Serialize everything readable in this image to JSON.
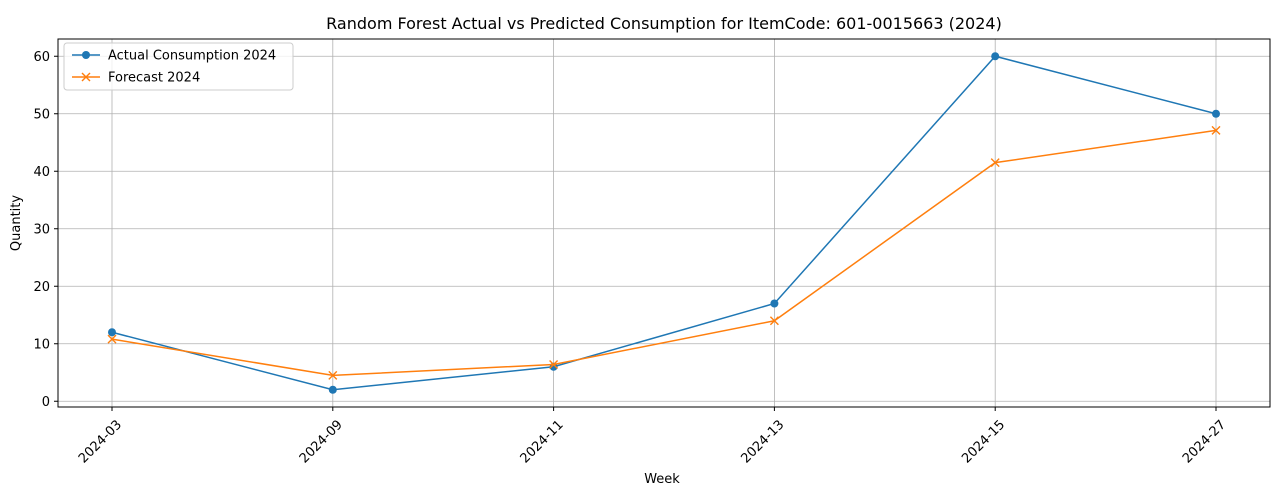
{
  "colors": {
    "actual": "#1f77b4",
    "forecast": "#ff7f0e",
    "grid": "#b0b0b0",
    "axis": "#000000",
    "background": "#ffffff"
  },
  "chart_data": {
    "type": "line",
    "title": "Random Forest Actual vs Predicted Consumption for ItemCode: 601-0015663 (2024)",
    "xlabel": "Week",
    "ylabel": "Quantity",
    "categories": [
      "2024-03",
      "2024-09",
      "2024-11",
      "2024-13",
      "2024-15",
      "2024-27"
    ],
    "ylim": [
      -1.0,
      63.0
    ],
    "yticks": [
      0,
      10,
      20,
      30,
      40,
      50,
      60
    ],
    "x_tick_rotation_deg": 45,
    "grid": true,
    "legend_position": "upper left",
    "series": [
      {
        "name": "Actual Consumption 2024",
        "marker": "circle",
        "color": "#1f77b4",
        "values": [
          12,
          2,
          6,
          17,
          60,
          50
        ]
      },
      {
        "name": "Forecast 2024",
        "marker": "x",
        "color": "#ff7f0e",
        "values": [
          10.8,
          4.5,
          6.4,
          14.0,
          41.5,
          47.1
        ]
      }
    ]
  }
}
